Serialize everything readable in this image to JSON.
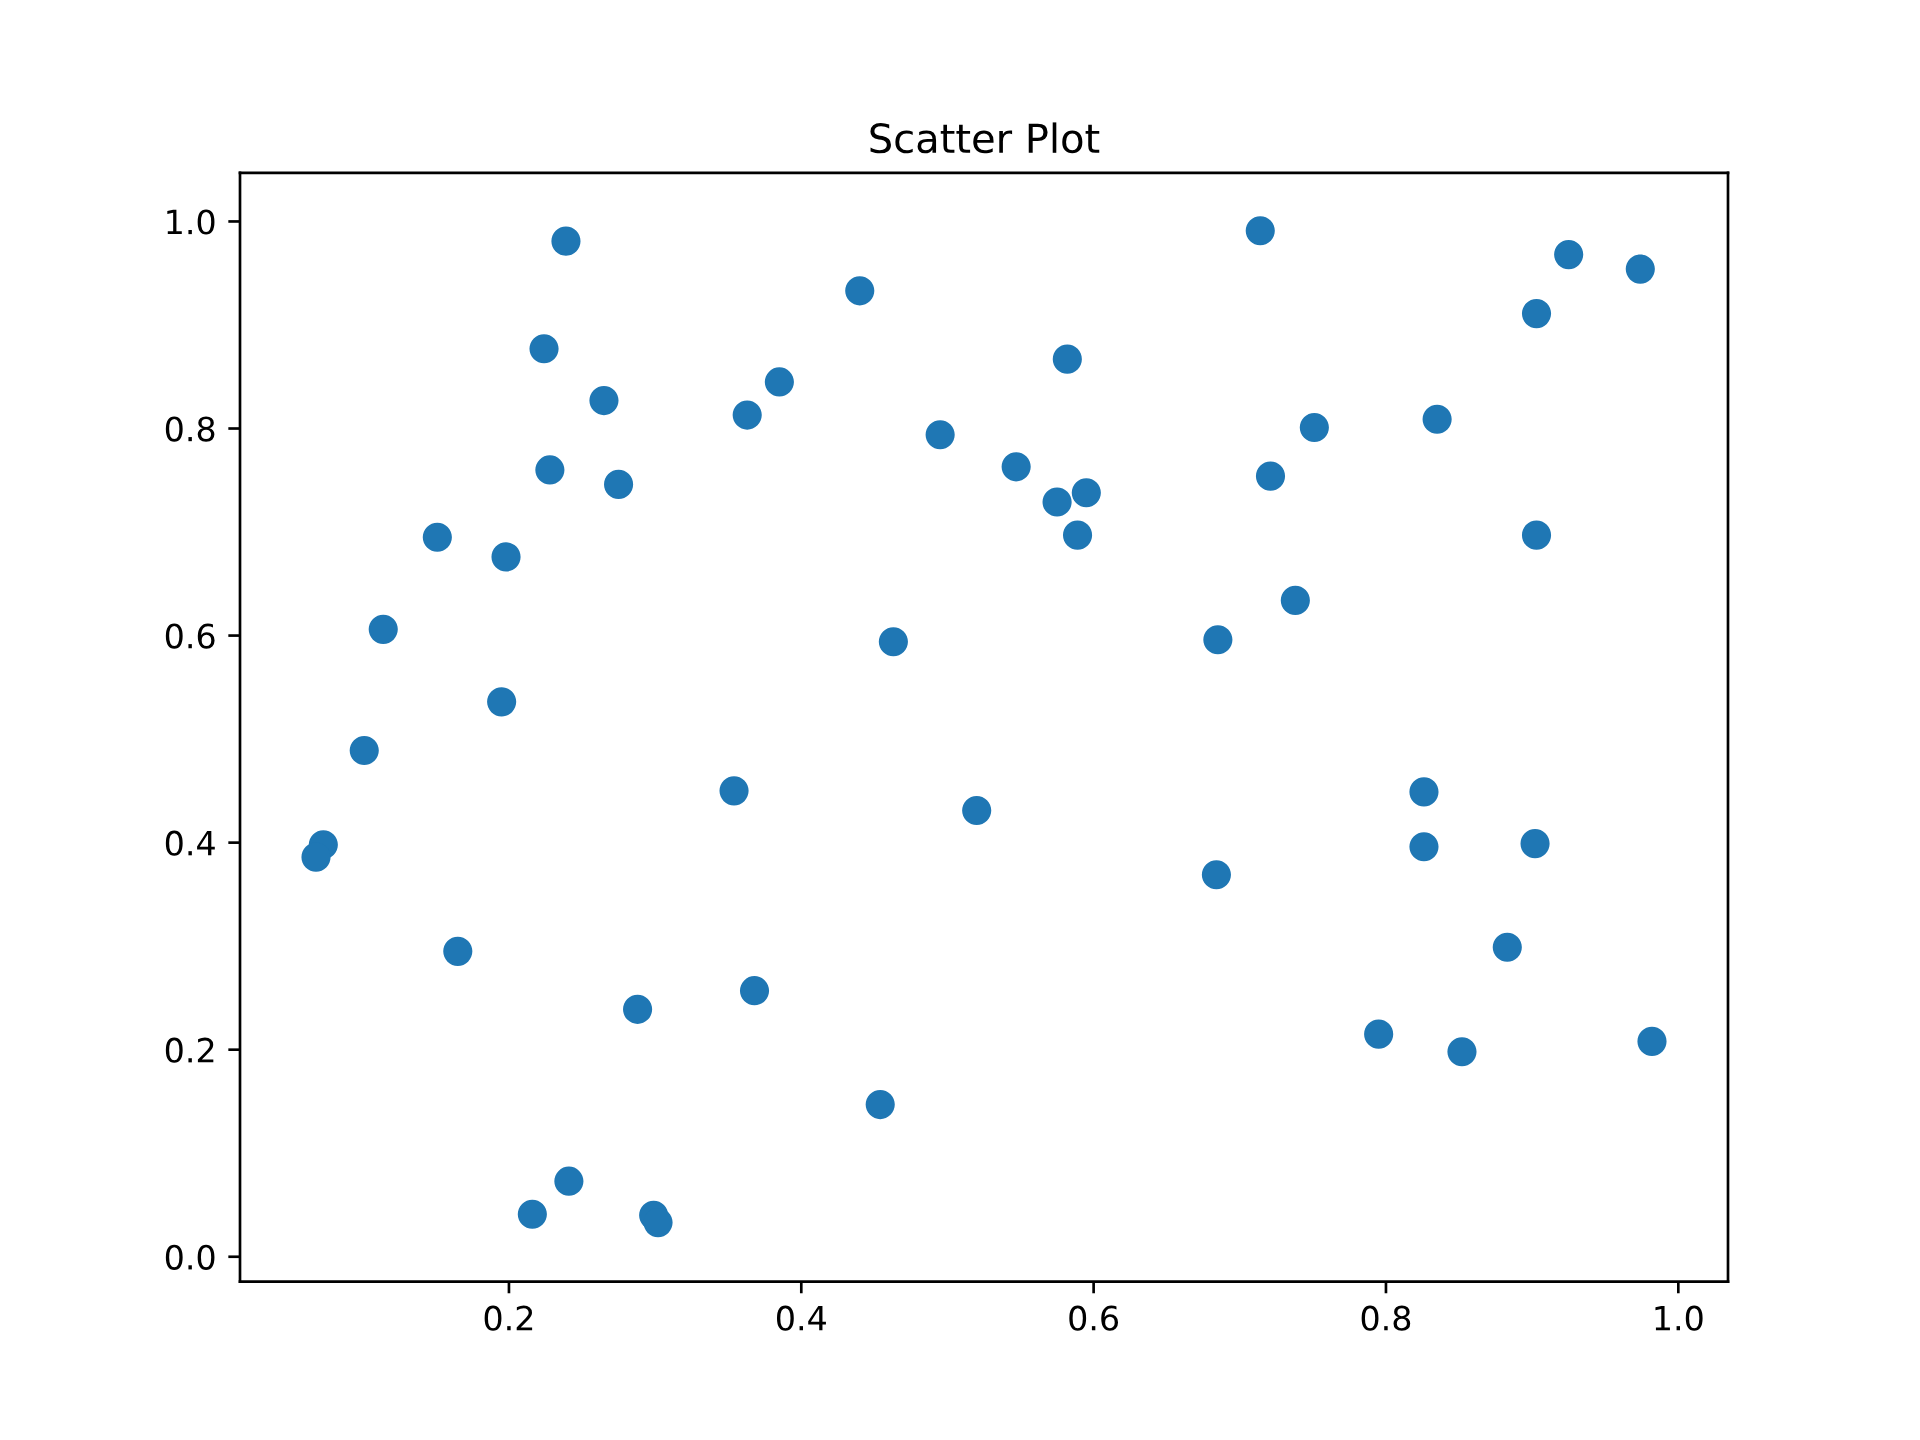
{
  "chart_data": {
    "type": "scatter",
    "title": "Scatter Plot",
    "color": "#1f77b4",
    "marker": "circle",
    "x": [
      0.239,
      0.224,
      0.265,
      0.228,
      0.275,
      0.151,
      0.198,
      0.114,
      0.195,
      0.101,
      0.073,
      0.068,
      0.165,
      0.288,
      0.241,
      0.216,
      0.299,
      0.302,
      0.363,
      0.385,
      0.44,
      0.354,
      0.368,
      0.463,
      0.454,
      0.495,
      0.547,
      0.582,
      0.575,
      0.595,
      0.589,
      0.52,
      0.714,
      0.721,
      0.751,
      0.738,
      0.685,
      0.684,
      0.835,
      0.826,
      0.826,
      0.795,
      0.852,
      0.883,
      0.902,
      0.903,
      0.903,
      0.925,
      0.974,
      0.982
    ],
    "values": [
      0.981,
      0.877,
      0.827,
      0.76,
      0.746,
      0.695,
      0.676,
      0.606,
      0.536,
      0.489,
      0.398,
      0.386,
      0.295,
      0.239,
      0.073,
      0.041,
      0.04,
      0.033,
      0.813,
      0.845,
      0.933,
      0.45,
      0.257,
      0.594,
      0.147,
      0.794,
      0.763,
      0.867,
      0.729,
      0.738,
      0.697,
      0.431,
      0.991,
      0.754,
      0.801,
      0.634,
      0.596,
      0.369,
      0.809,
      0.449,
      0.396,
      0.215,
      0.198,
      0.299,
      0.399,
      0.697,
      0.911,
      0.968,
      0.954,
      0.208
    ],
    "xlim": [
      0.016,
      1.034
    ],
    "ylim": [
      -0.024,
      1.047
    ],
    "xticks": [
      0.2,
      0.4,
      0.6,
      0.8,
      {
        "value": 1.0,
        "label": "1.0"
      }
    ],
    "yticks": [
      {
        "value": 0.0,
        "label": "0.0"
      },
      0.2,
      0.4,
      0.6,
      0.8,
      {
        "value": 1.0,
        "label": "1.0"
      }
    ]
  }
}
